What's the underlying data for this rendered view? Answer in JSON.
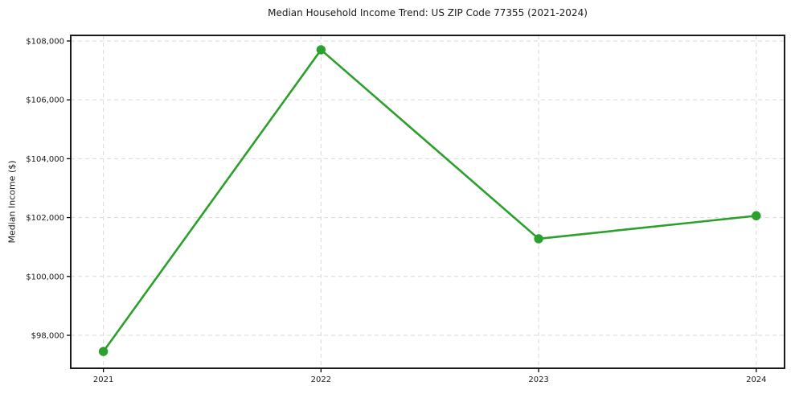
{
  "chart_data": {
    "type": "line",
    "title": "Median Household Income Trend: US ZIP Code 77355 (2021-2024)",
    "xlabel": "",
    "ylabel": "Median Income ($)",
    "x": [
      2021,
      2022,
      2023,
      2024
    ],
    "x_tick_labels": [
      "2021",
      "2022",
      "2023",
      "2024"
    ],
    "series": [
      {
        "name": "Median Household Income",
        "values": [
          97450,
          107700,
          101280,
          102060
        ],
        "color": "#2ca02c",
        "marker": "circle",
        "line_width": 2.6,
        "marker_radius": 5.7
      }
    ],
    "yticks": [
      98000,
      100000,
      102000,
      104000,
      106000,
      108000
    ],
    "y_tick_labels": [
      "$98,000",
      "$100,000",
      "$102,000",
      "$104,000",
      "$106,000",
      "$108,000"
    ],
    "xlim": [
      2020.85,
      2024.13
    ],
    "ylim": [
      96880,
      108190
    ],
    "grid": true,
    "grid_style": "dashed",
    "grid_color": "#d9d9d9",
    "axis_color": "#000000",
    "text_color": "#1a1a1a",
    "background": "#ffffff",
    "legend_position": "none"
  }
}
